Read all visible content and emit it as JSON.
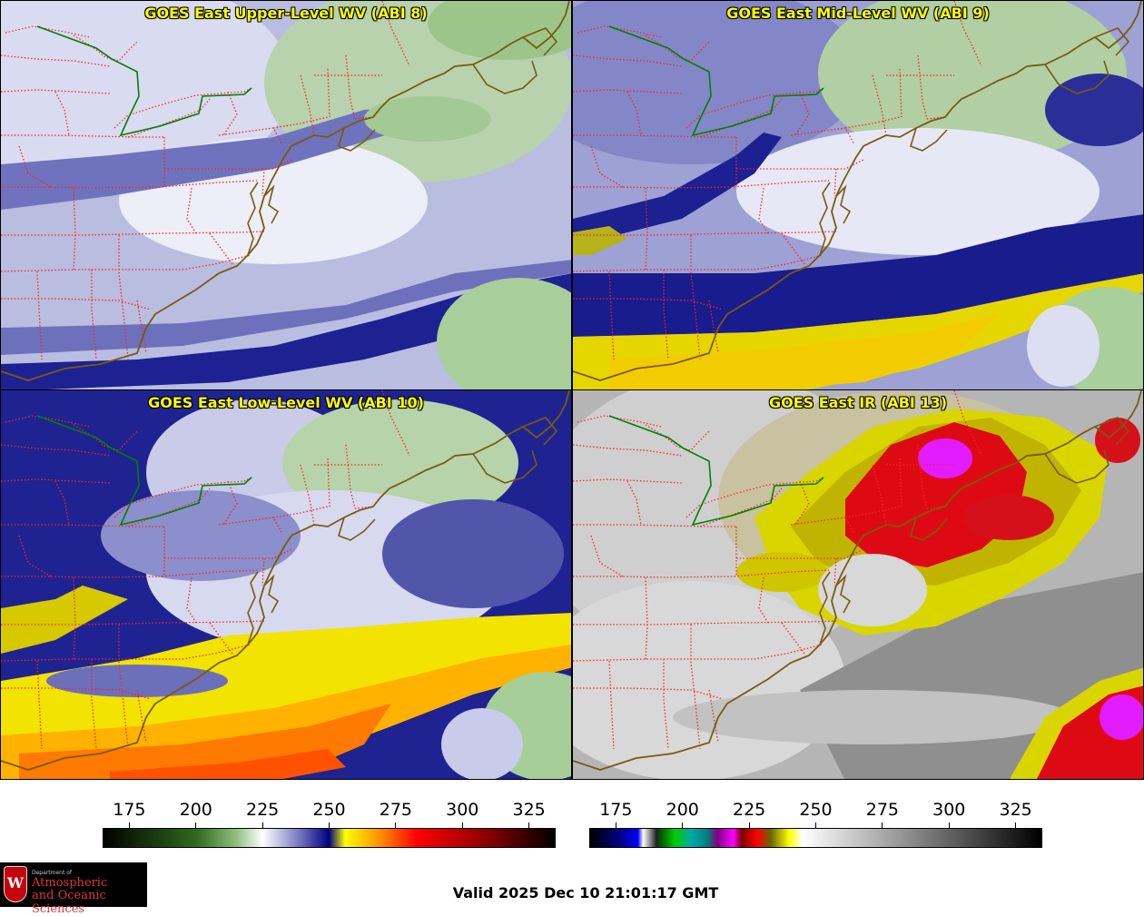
{
  "panels": [
    {
      "id": "p1",
      "title": "GOES East Upper-Level WV (ABI 8)",
      "palette": "wv",
      "scheme": "upper"
    },
    {
      "id": "p2",
      "title": "GOES East Mid-Level WV (ABI 9)",
      "palette": "wv",
      "scheme": "mid"
    },
    {
      "id": "p3",
      "title": "GOES East Low-Level WV (ABI 10)",
      "palette": "wv",
      "scheme": "low"
    },
    {
      "id": "p4",
      "title": "GOES East IR (ABI 13)",
      "palette": "ir",
      "scheme": "ir"
    }
  ],
  "colorbar_wv": {
    "range": [
      165,
      335
    ],
    "ticks": [
      "175",
      "200",
      "225",
      "250",
      "275",
      "300",
      "325"
    ],
    "stops": [
      {
        "v": 165,
        "c": "#000000"
      },
      {
        "v": 200,
        "c": "#2f6a1c"
      },
      {
        "v": 215,
        "c": "#8fbf7c"
      },
      {
        "v": 225,
        "c": "#ffffff"
      },
      {
        "v": 240,
        "c": "#6a6aba"
      },
      {
        "v": 250,
        "c": "#000080"
      },
      {
        "v": 256,
        "c": "#ffff00"
      },
      {
        "v": 270,
        "c": "#ff8800"
      },
      {
        "v": 283,
        "c": "#ff0000"
      },
      {
        "v": 305,
        "c": "#a00000"
      },
      {
        "v": 335,
        "c": "#000000"
      }
    ]
  },
  "colorbar_ir": {
    "range": [
      165,
      335
    ],
    "ticks": [
      "175",
      "200",
      "225",
      "250",
      "275",
      "300",
      "325"
    ],
    "stops": [
      {
        "v": 165,
        "c": "#000000"
      },
      {
        "v": 176,
        "c": "#000080"
      },
      {
        "v": 183,
        "c": "#0000ff"
      },
      {
        "v": 185,
        "c": "#ffffff"
      },
      {
        "v": 190,
        "c": "#202020"
      },
      {
        "v": 192,
        "c": "#006000"
      },
      {
        "v": 197,
        "c": "#00cc00"
      },
      {
        "v": 203,
        "c": "#00aaaa"
      },
      {
        "v": 209,
        "c": "#008080"
      },
      {
        "v": 213,
        "c": "#800080"
      },
      {
        "v": 219,
        "c": "#ff00ff"
      },
      {
        "v": 222,
        "c": "#800000"
      },
      {
        "v": 228,
        "c": "#ff0000"
      },
      {
        "v": 233,
        "c": "#666600"
      },
      {
        "v": 240,
        "c": "#ffff00"
      },
      {
        "v": 245,
        "c": "#ffffff"
      },
      {
        "v": 335,
        "c": "#000000"
      }
    ]
  },
  "valid_time": "Valid 2025 Dec 10 21:01:17 GMT",
  "logo": {
    "letter": "W",
    "dept": "Department of",
    "line1": "Atmospheric",
    "line2": "and Oceanic Sciences"
  },
  "colors": {
    "title_text": "#ffff00",
    "coastline": "#7a5a10",
    "state_border": "#ff2020",
    "jurisdiction_line": "#008000"
  }
}
